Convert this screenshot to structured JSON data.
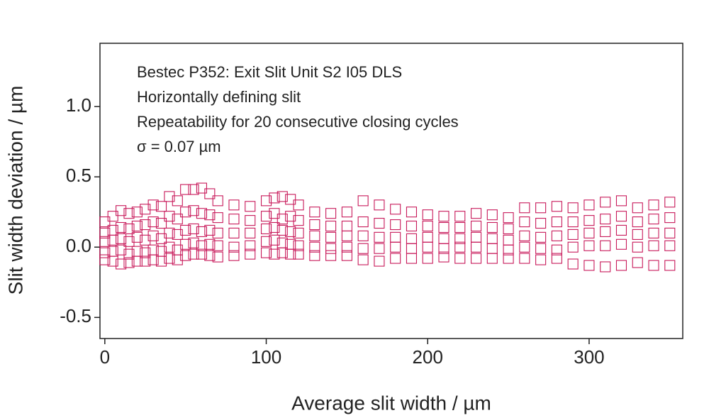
{
  "chart_data": {
    "type": "scatter",
    "annotations": [
      "Bestec P352: Exit Slit Unit S2 I05 DLS",
      "Horizontally defining slit",
      "Repeatability for 20 consecutive closing cycles",
      "σ = 0.07 µm"
    ],
    "x_label": "Average slit width / µm",
    "y_label": "Slit width deviation / µm",
    "xlim": [
      -3,
      358
    ],
    "ylim": [
      -0.65,
      1.45
    ],
    "xticks": [
      0,
      100,
      200,
      300
    ],
    "yticks": [
      {
        "value": -0.5,
        "label": "-0.5"
      },
      {
        "value": 0,
        "label": "0.0"
      },
      {
        "value": 0.5,
        "label": "0.5"
      },
      {
        "value": 1,
        "label": "1.0"
      }
    ],
    "color": "#c8195a",
    "marker": "open-square",
    "x": [
      0,
      0,
      0,
      0,
      0,
      5,
      5,
      5,
      5,
      5,
      10,
      10,
      10,
      10,
      10,
      15,
      15,
      15,
      15,
      15,
      20,
      20,
      20,
      20,
      20,
      25,
      25,
      25,
      25,
      25,
      30,
      30,
      30,
      30,
      30,
      35,
      35,
      35,
      35,
      35,
      40,
      40,
      40,
      40,
      40,
      45,
      45,
      45,
      45,
      45,
      50,
      50,
      50,
      50,
      50,
      55,
      55,
      55,
      55,
      55,
      60,
      60,
      60,
      60,
      60,
      65,
      65,
      65,
      65,
      65,
      70,
      70,
      70,
      70,
      70,
      80,
      80,
      80,
      80,
      80,
      90,
      90,
      90,
      90,
      90,
      100,
      100,
      100,
      100,
      100,
      105,
      105,
      105,
      105,
      105,
      110,
      110,
      110,
      110,
      110,
      115,
      115,
      115,
      115,
      115,
      120,
      120,
      120,
      120,
      120,
      130,
      130,
      130,
      130,
      130,
      140,
      140,
      140,
      140,
      140,
      150,
      150,
      150,
      150,
      150,
      160,
      160,
      160,
      160,
      160,
      170,
      170,
      170,
      170,
      170,
      180,
      180,
      180,
      180,
      180,
      190,
      190,
      190,
      190,
      190,
      200,
      200,
      200,
      200,
      200,
      210,
      210,
      210,
      210,
      210,
      220,
      220,
      220,
      220,
      220,
      230,
      230,
      230,
      230,
      230,
      240,
      240,
      240,
      240,
      240,
      250,
      250,
      250,
      250,
      250,
      260,
      260,
      260,
      260,
      260,
      270,
      270,
      270,
      270,
      270,
      280,
      280,
      280,
      280,
      280,
      290,
      290,
      290,
      290,
      290,
      300,
      300,
      300,
      300,
      300,
      310,
      310,
      310,
      310,
      310,
      320,
      320,
      320,
      320,
      320,
      330,
      330,
      330,
      330,
      330,
      340,
      340,
      340,
      340,
      340,
      350,
      350,
      350,
      350,
      350
    ],
    "values": [
      0.18,
      0.1,
      0.04,
      -0.04,
      -0.09,
      0.22,
      0.12,
      0.05,
      -0.03,
      -0.1,
      0.26,
      0.14,
      0.06,
      -0.02,
      -0.12,
      0.24,
      0.13,
      0.04,
      -0.05,
      -0.11,
      0.25,
      0.15,
      0.07,
      -0.03,
      -0.1,
      0.27,
      0.16,
      0.05,
      -0.04,
      -0.1,
      0.3,
      0.18,
      0.08,
      -0.02,
      -0.09,
      0.29,
      0.17,
      0.06,
      -0.03,
      -0.1,
      0.36,
      0.22,
      0.1,
      0,
      -0.08,
      0.33,
      0.2,
      0.09,
      -0.02,
      -0.09,
      0.41,
      0.25,
      0.12,
      0.02,
      -0.06,
      0.41,
      0.26,
      0.13,
      0.03,
      -0.05,
      0.42,
      0.24,
      0.11,
      0.01,
      -0.05,
      0.38,
      0.23,
      0.12,
      0.02,
      -0.06,
      0.33,
      0.21,
      0.1,
      0.01,
      -0.07,
      0.3,
      0.2,
      0.1,
      0,
      -0.06,
      0.29,
      0.19,
      0.1,
      0.01,
      -0.05,
      0.33,
      0.22,
      0.13,
      0.04,
      -0.04,
      0.35,
      0.24,
      0.14,
      0.05,
      -0.05,
      0.36,
      0.2,
      0.12,
      0.03,
      -0.04,
      0.34,
      0.22,
      0.11,
      0.02,
      -0.05,
      0.3,
      0.19,
      0.1,
      0.01,
      -0.05,
      0.25,
      0.16,
      0.08,
      0,
      -0.06,
      0.24,
      0.15,
      0.07,
      -0.01,
      -0.06,
      0.25,
      0.15,
      0.08,
      0,
      -0.06,
      0.33,
      0.18,
      0.08,
      -0.01,
      -0.09,
      0.3,
      0.17,
      0.07,
      -0.01,
      -0.1,
      0.27,
      0.16,
      0.07,
      0,
      -0.08,
      0.25,
      0.15,
      0.06,
      -0.01,
      -0.08,
      0.23,
      0.15,
      0.07,
      0,
      -0.08,
      0.22,
      0.14,
      0.06,
      -0.01,
      -0.07,
      0.22,
      0.14,
      0.06,
      0,
      -0.08,
      0.24,
      0.15,
      0.07,
      0,
      -0.08,
      0.23,
      0.14,
      0.06,
      -0.01,
      -0.08,
      0.21,
      0.13,
      0.05,
      -0.02,
      -0.08,
      0.28,
      0.18,
      0.08,
      0,
      -0.08,
      0.28,
      0.17,
      0.07,
      -0.01,
      -0.09,
      0.29,
      0.18,
      0.08,
      -0.02,
      -0.08,
      0.28,
      0.18,
      0.09,
      0,
      -0.12,
      0.3,
      0.19,
      0.1,
      0.01,
      -0.13,
      0.32,
      0.2,
      0.11,
      0.01,
      -0.14,
      0.33,
      0.22,
      0.12,
      0.02,
      -0.13,
      0.28,
      0.18,
      0.09,
      0,
      -0.11,
      0.3,
      0.2,
      0.1,
      0.01,
      -0.13,
      0.32,
      0.21,
      0.1,
      0.01,
      -0.13
    ]
  }
}
